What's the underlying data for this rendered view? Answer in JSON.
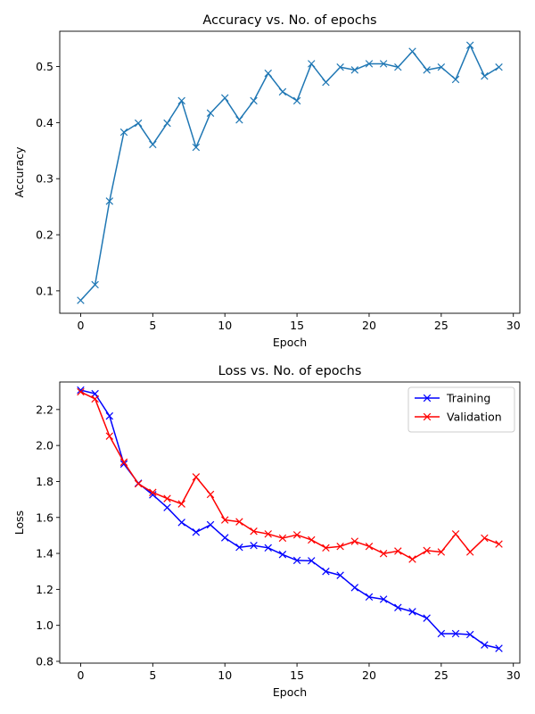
{
  "chart_data": [
    {
      "type": "line",
      "title": "Accuracy vs. No. of epochs",
      "xlabel": "Epoch",
      "ylabel": "Accuracy",
      "xlim": [
        -1.45,
        30.45
      ],
      "ylim": [
        0.06,
        0.563
      ],
      "xticks": [
        0,
        5,
        10,
        15,
        20,
        25,
        30
      ],
      "yticks": [
        0.1,
        0.2,
        0.3,
        0.4,
        0.5
      ],
      "ytick_labels": [
        "0.1",
        "0.2",
        "0.3",
        "0.4",
        "0.5"
      ],
      "grid": false,
      "marker": "x",
      "series": [
        {
          "color": "#1f77b4",
          "x": [
            0,
            1,
            2,
            3,
            4,
            5,
            6,
            7,
            8,
            9,
            10,
            11,
            12,
            13,
            14,
            15,
            16,
            17,
            18,
            19,
            20,
            21,
            22,
            23,
            24,
            25,
            26,
            27,
            28,
            29
          ],
          "values": [
            0.083,
            0.111,
            0.26,
            0.383,
            0.399,
            0.361,
            0.399,
            0.439,
            0.356,
            0.417,
            0.444,
            0.405,
            0.439,
            0.488,
            0.455,
            0.439,
            0.505,
            0.472,
            0.499,
            0.494,
            0.505,
            0.505,
            0.499,
            0.527,
            0.494,
            0.499,
            0.477,
            0.538,
            0.483,
            0.499
          ]
        }
      ]
    },
    {
      "type": "line",
      "title": "Loss vs. No. of epochs",
      "xlabel": "Epoch",
      "ylabel": "Loss",
      "xlim": [
        -1.45,
        30.45
      ],
      "ylim": [
        0.79,
        2.353
      ],
      "xticks": [
        0,
        5,
        10,
        15,
        20,
        25,
        30
      ],
      "yticks": [
        0.8,
        1.0,
        1.2,
        1.4,
        1.6,
        1.8,
        2.0,
        2.2
      ],
      "ytick_labels": [
        "0.8",
        "1.0",
        "1.2",
        "1.4",
        "1.6",
        "1.8",
        "2.0",
        "2.2"
      ],
      "grid": false,
      "marker": "x",
      "legend": "top-right",
      "series": [
        {
          "name": "Training",
          "color": "#0000ff",
          "x": [
            0,
            1,
            2,
            3,
            4,
            5,
            6,
            7,
            8,
            9,
            10,
            11,
            12,
            13,
            14,
            15,
            16,
            17,
            18,
            19,
            20,
            21,
            22,
            23,
            24,
            25,
            26,
            27,
            28,
            29
          ],
          "values": [
            2.308,
            2.288,
            2.164,
            1.897,
            1.79,
            1.726,
            1.655,
            1.572,
            1.518,
            1.559,
            1.487,
            1.434,
            1.444,
            1.431,
            1.394,
            1.361,
            1.359,
            1.3,
            1.278,
            1.21,
            1.158,
            1.145,
            1.099,
            1.076,
            1.04,
            0.954,
            0.954,
            0.949,
            0.891,
            0.872
          ]
        },
        {
          "name": "Validation",
          "color": "#ff0000",
          "x": [
            0,
            1,
            2,
            3,
            4,
            5,
            6,
            7,
            8,
            9,
            10,
            11,
            12,
            13,
            14,
            15,
            16,
            17,
            18,
            19,
            20,
            21,
            22,
            23,
            24,
            25,
            26,
            27,
            28,
            29
          ],
          "values": [
            2.298,
            2.259,
            2.052,
            1.907,
            1.787,
            1.739,
            1.705,
            1.675,
            1.825,
            1.728,
            1.586,
            1.576,
            1.523,
            1.508,
            1.485,
            1.503,
            1.475,
            1.431,
            1.439,
            1.467,
            1.439,
            1.399,
            1.413,
            1.368,
            1.416,
            1.408,
            1.508,
            1.408,
            1.485,
            1.452
          ]
        }
      ]
    }
  ]
}
